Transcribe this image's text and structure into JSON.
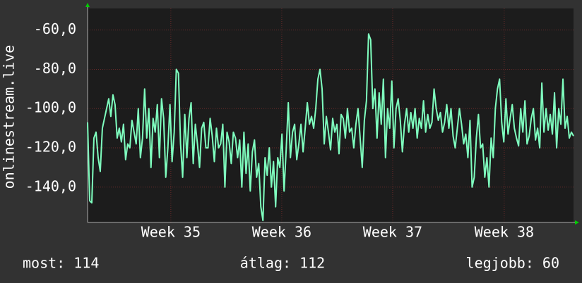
{
  "chart_data": {
    "type": "line",
    "y_label": "onlinestream.live",
    "series": [
      {
        "name": "onlinestream.live",
        "color": "#7fffbf",
        "values": [
          -107,
          -147,
          -148,
          -115,
          -112,
          -125,
          -132,
          -110,
          -105,
          -100,
          -95,
          -104,
          -93,
          -98,
          -115,
          -110,
          -117,
          -108,
          -126,
          -118,
          -120,
          -106,
          -112,
          -118,
          -100,
          -125,
          -115,
          -90,
          -115,
          -100,
          -130,
          -105,
          -112,
          -98,
          -125,
          -95,
          -105,
          -135,
          -120,
          -98,
          -127,
          -112,
          -80,
          -82,
          -118,
          -135,
          -103,
          -125,
          -105,
          -97,
          -128,
          -108,
          -118,
          -130,
          -110,
          -107,
          -120,
          -120,
          -105,
          -114,
          -127,
          -110,
          -120,
          -118,
          -108,
          -140,
          -112,
          -117,
          -128,
          -112,
          -115,
          -125,
          -116,
          -140,
          -112,
          -133,
          -118,
          -142,
          -122,
          -116,
          -135,
          -128,
          -150,
          -157,
          -125,
          -134,
          -120,
          -140,
          -127,
          -150,
          -125,
          -130,
          -113,
          -142,
          -121,
          -97,
          -125,
          -112,
          -108,
          -126,
          -118,
          -108,
          -122,
          -110,
          -97,
          -108,
          -104,
          -110,
          -100,
          -85,
          -80,
          -90,
          -118,
          -104,
          -112,
          -121,
          -105,
          -112,
          -108,
          -123,
          -103,
          -105,
          -115,
          -100,
          -112,
          -110,
          -120,
          -108,
          -100,
          -115,
          -130,
          -106,
          -96,
          -62,
          -65,
          -100,
          -90,
          -115,
          -92,
          -108,
          -85,
          -125,
          -100,
          -110,
          -86,
          -120,
          -100,
          -95,
          -106,
          -122,
          -108,
          -100,
          -112,
          -102,
          -110,
          -100,
          -115,
          -105,
          -110,
          -96,
          -112,
          -103,
          -110,
          -107,
          -90,
          -100,
          -106,
          -102,
          -112,
          -107,
          -98,
          -110,
          -100,
          -114,
          -120,
          -110,
          -100,
          -108,
          -118,
          -113,
          -125,
          -106,
          -140,
          -135,
          -115,
          -103,
          -120,
          -118,
          -135,
          -125,
          -140,
          -115,
          -125,
          -100,
          -90,
          -85,
          -107,
          -117,
          -95,
          -113,
          -105,
          -98,
          -110,
          -115,
          -119,
          -100,
          -112,
          -96,
          -118,
          -114,
          -105,
          -100,
          -116,
          -110,
          -120,
          -87,
          -112,
          -100,
          -111,
          -103,
          -113,
          -92,
          -120,
          -100,
          -108,
          -85,
          -110,
          -104,
          -115,
          -112,
          -114
        ]
      }
    ],
    "xlim": [
      0,
      230
    ],
    "xticks": [
      {
        "value": 39.4,
        "label": "Week 35"
      },
      {
        "value": 91.9,
        "label": "Week 36"
      },
      {
        "value": 144.4,
        "label": "Week 37"
      },
      {
        "value": 197.2,
        "label": "Week 38"
      }
    ],
    "ylim": [
      -158,
      -49
    ],
    "yticks": [
      {
        "value": -140,
        "label": "-140,0"
      },
      {
        "value": -120,
        "label": "-120,0"
      },
      {
        "value": -100,
        "label": "-100,0"
      },
      {
        "value": -80,
        "label": "-80,0"
      },
      {
        "value": -60,
        "label": "-60,0"
      }
    ],
    "grid": true,
    "grid_color": "#6a2a2a",
    "stats": [
      "most: 114",
      "átlag: 112",
      "legjobb: 60"
    ]
  }
}
